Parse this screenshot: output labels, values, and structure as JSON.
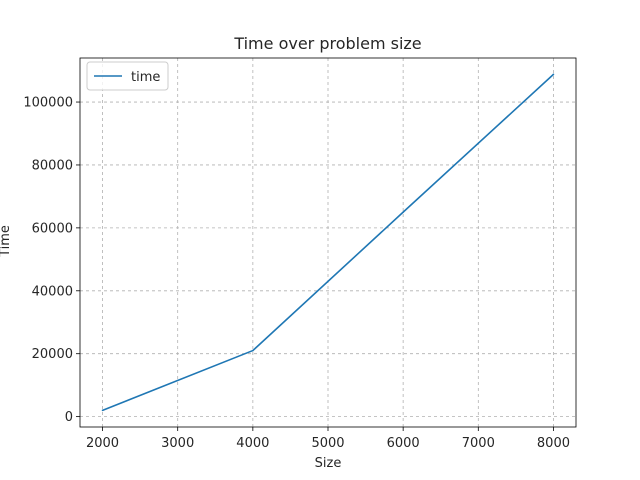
{
  "chart_data": {
    "type": "line",
    "title": "Time over problem size",
    "xlabel": "Size",
    "ylabel": "Time",
    "xlim": [
      1700,
      8300
    ],
    "ylim": [
      -3300,
      114000
    ],
    "xticks": [
      2000,
      3000,
      4000,
      5000,
      6000,
      7000,
      8000
    ],
    "yticks": [
      0,
      20000,
      40000,
      60000,
      80000,
      100000
    ],
    "grid": true,
    "legend": {
      "position": "top-left",
      "entries": [
        "time"
      ]
    },
    "series": [
      {
        "name": "time",
        "color": "#1f77b4",
        "x": [
          2000,
          4000,
          6000,
          8000
        ],
        "y": [
          2000,
          21000,
          65000,
          108800
        ]
      }
    ]
  }
}
